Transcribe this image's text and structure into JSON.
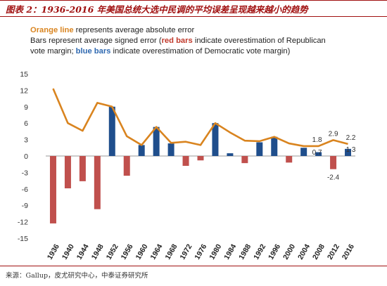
{
  "header": {
    "title": "图表 2：1936-2016 年美国总统大选中民调的平均误差呈现越来越小的趋势"
  },
  "legend": {
    "line1_orange": "Orange line",
    "line1_rest": " represents average absolute error",
    "line2_start": "Bars represent average signed error (",
    "line2_red": "red bars",
    "line2_mid": " indicate overestimation of Republican",
    "line3_start": "vote margin; ",
    "line3_blue": "blue bars",
    "line3_end": " indicate overestimation of Democratic vote margin)"
  },
  "source": "来源：Gallup，皮尤研究中心，中泰证券研究所",
  "colors": {
    "orange": "#d9841f",
    "red": "#c0504d",
    "blue": "#1f4e8c",
    "title": "#a01010"
  },
  "chart_data": {
    "type": "bar+line",
    "categories": [
      "1936",
      "1940",
      "1944",
      "1948",
      "1952",
      "1956",
      "1960",
      "1964",
      "1968",
      "1972",
      "1976",
      "1980",
      "1984",
      "1988",
      "1992",
      "1996",
      "2000",
      "2004",
      "2008",
      "2012",
      "2016"
    ],
    "signed_error": [
      -12.3,
      -5.9,
      -4.6,
      -9.7,
      9.0,
      -3.6,
      2.0,
      5.3,
      2.3,
      -1.8,
      -0.8,
      6.0,
      0.5,
      -1.3,
      2.5,
      3.5,
      -1.2,
      1.5,
      0.7,
      -2.4,
      1.3
    ],
    "absolute_error": [
      12.3,
      6.0,
      4.6,
      9.7,
      9.0,
      3.6,
      2.0,
      5.3,
      2.4,
      2.6,
      2.0,
      6.0,
      4.3,
      2.8,
      2.7,
      3.5,
      2.3,
      1.8,
      1.8,
      2.9,
      2.2
    ],
    "data_labels": [
      {
        "category": "2008",
        "series": "absolute_error",
        "text": "1.8"
      },
      {
        "category": "2008",
        "series": "signed_error",
        "text": "0.7"
      },
      {
        "category": "2012",
        "series": "absolute_error",
        "text": "2.9"
      },
      {
        "category": "2012",
        "series": "signed_error",
        "text": "-2.4"
      },
      {
        "category": "2016",
        "series": "absolute_error",
        "text": "2.2"
      },
      {
        "category": "2016",
        "series": "signed_error",
        "text": "1.3"
      }
    ],
    "yticks": [
      15,
      12,
      9,
      6,
      3,
      0,
      -3,
      -6,
      -9,
      -12,
      -15
    ],
    "ylim": [
      -15,
      15
    ],
    "grid": false
  }
}
